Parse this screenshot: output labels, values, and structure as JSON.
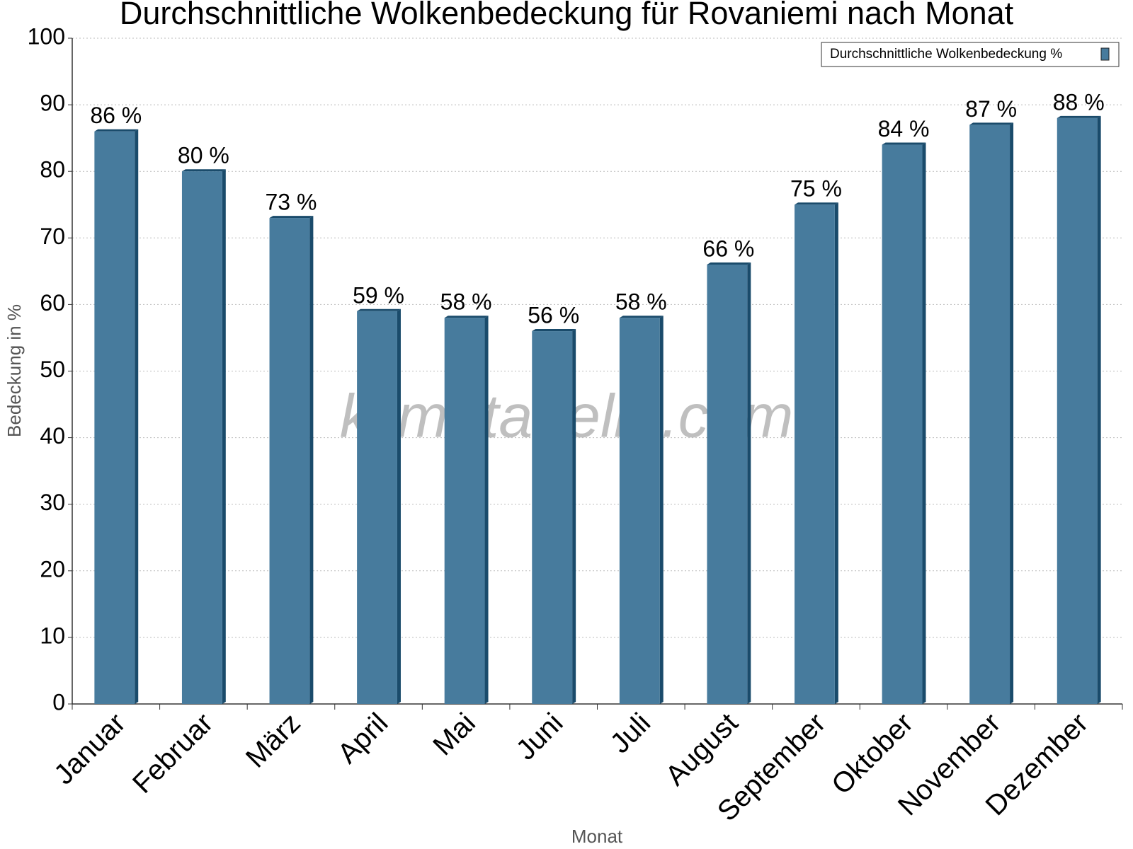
{
  "chart_data": {
    "type": "bar",
    "title": "Durchschnittliche Wolkenbedeckung für Rovaniemi nach Monat",
    "x_label": "Monat",
    "y_label": "Bedeckung in %",
    "watermark": "klimatabelle.com",
    "categories": [
      "Januar",
      "Februar",
      "März",
      "April",
      "Mai",
      "Juni",
      "Juli",
      "August",
      "September",
      "Oktober",
      "November",
      "Dezember"
    ],
    "series": [
      {
        "name": "Durchschnittliche Wolkenbedeckung %",
        "color": "#477b9d",
        "values": [
          86,
          80,
          73,
          59,
          58,
          56,
          58,
          66,
          75,
          84,
          87,
          88
        ],
        "value_labels": [
          "86 %",
          "80 %",
          "73 %",
          "59 %",
          "58 %",
          "56 %",
          "58 %",
          "66 %",
          "75 %",
          "84 %",
          "87 %",
          "88 %"
        ]
      }
    ],
    "ylim": [
      0,
      100
    ],
    "yticks": [
      0,
      10,
      20,
      30,
      40,
      50,
      60,
      70,
      80,
      90,
      100
    ],
    "grid": true,
    "legend": "top-right"
  }
}
